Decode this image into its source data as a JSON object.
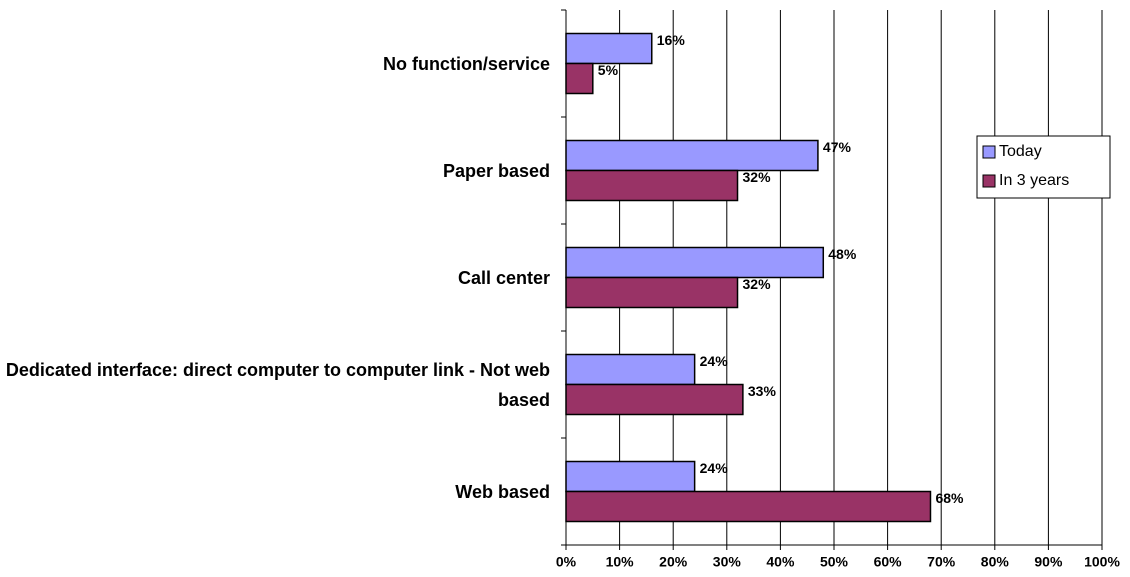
{
  "chart_data": {
    "type": "bar",
    "orientation": "horizontal",
    "categories": [
      "No function/service",
      "Paper based",
      "Call center",
      "Dedicated interface: direct computer to computer link - Not web based",
      "Web based"
    ],
    "series": [
      {
        "name": "Today",
        "color": "#9999ff",
        "values": [
          16,
          47,
          48,
          24,
          24
        ],
        "value_labels": [
          "16%",
          "47%",
          "48%",
          "24%",
          "24%"
        ]
      },
      {
        "name": "In 3 years",
        "color": "#993366",
        "values": [
          5,
          32,
          32,
          33,
          68
        ],
        "value_labels": [
          "5%",
          "32%",
          "32%",
          "33%",
          "68%"
        ]
      }
    ],
    "xlim": [
      0,
      100
    ],
    "xticks": [
      {
        "value": 0,
        "label": "0%"
      },
      {
        "value": 10,
        "label": "10%"
      },
      {
        "value": 20,
        "label": "20%"
      },
      {
        "value": 30,
        "label": "30%"
      },
      {
        "value": 40,
        "label": "40%"
      },
      {
        "value": 50,
        "label": "50%"
      },
      {
        "value": 60,
        "label": "60%"
      },
      {
        "value": 70,
        "label": "70%"
      },
      {
        "value": 80,
        "label": "80%"
      },
      {
        "value": 90,
        "label": "90%"
      },
      {
        "value": 100,
        "label": "100%"
      }
    ],
    "grid": true,
    "legend": "right"
  }
}
